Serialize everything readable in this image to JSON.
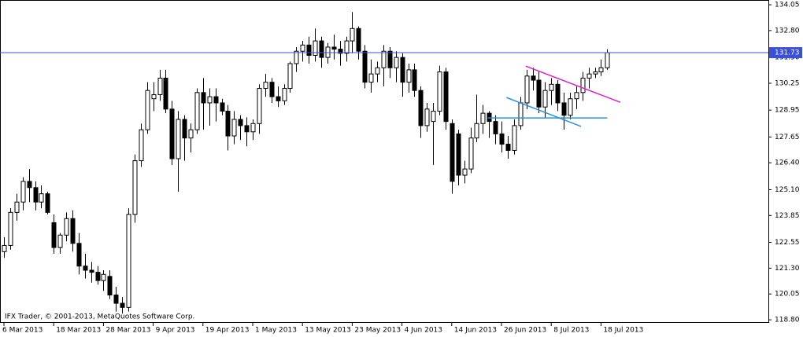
{
  "chart_data": {
    "type": "candlestick",
    "watermark": "IFX Trader, © 2001-2013, MetaQuotes Software Corp.",
    "categories": [
      "6 Mar 2013",
      null,
      null,
      null,
      null,
      null,
      null,
      null,
      "18 Mar 2013",
      null,
      null,
      null,
      null,
      null,
      null,
      null,
      "28 Mar 2013",
      null,
      null,
      null,
      null,
      null,
      null,
      null,
      "9 Apr 2013",
      null,
      null,
      null,
      null,
      null,
      null,
      null,
      "19 Apr 2013",
      null,
      null,
      null,
      null,
      null,
      null,
      null,
      "1 May 2013",
      null,
      null,
      null,
      null,
      null,
      null,
      null,
      "13 May 2013",
      null,
      null,
      null,
      null,
      null,
      null,
      null,
      "23 May 2013",
      null,
      null,
      null,
      null,
      null,
      null,
      null,
      "4 Jun 2013",
      null,
      null,
      null,
      null,
      null,
      null,
      null,
      "14 Jun 2013",
      null,
      null,
      null,
      null,
      null,
      null,
      null,
      "26 Jun 2013",
      null,
      null,
      null,
      null,
      null,
      null,
      null,
      "8 Jul 2013",
      null,
      null,
      null,
      null,
      null,
      null,
      null,
      "18 Jul 2013",
      null
    ],
    "open": [
      122.1,
      122.4,
      124.0,
      124.5,
      125.5,
      125.2,
      124.5,
      124.9,
      123.5,
      122.3,
      122.9,
      123.7,
      122.5,
      121.4,
      121.2,
      121.1,
      120.7,
      120.9,
      120.0,
      119.6,
      119.4,
      123.9,
      126.5,
      128.0,
      129.5,
      129.7,
      130.5,
      129.0,
      126.6,
      128.5,
      127.6,
      128.0,
      129.8,
      129.3,
      129.6,
      129.3,
      128.9,
      127.7,
      128.5,
      128.2,
      127.9,
      128.3,
      130.0,
      130.3,
      129.6,
      129.4,
      130.0,
      131.2,
      131.8,
      132.1,
      131.6,
      132.3,
      131.5,
      132.0,
      131.9,
      131.7,
      132.3,
      132.9,
      131.8,
      130.3,
      130.7,
      131.0,
      131.8,
      131.0,
      131.5,
      130.3,
      130.9,
      129.9,
      128.2,
      128.4,
      128.9,
      130.8,
      128.3,
      127.8,
      125.8,
      126.1,
      127.6,
      128.3,
      128.8,
      128.4,
      127.8,
      127.3,
      127.0,
      128.2,
      129.3,
      130.6,
      130.4,
      129.1,
      129.9,
      130.2,
      129.3,
      128.7,
      129.5,
      129.8,
      130.5,
      130.7,
      130.8,
      131.0
    ],
    "high": [
      122.8,
      124.2,
      124.9,
      125.7,
      126.1,
      125.5,
      125.3,
      125.0,
      123.9,
      123.0,
      124.0,
      124.1,
      123.0,
      122.0,
      121.6,
      121.4,
      121.2,
      121.2,
      120.4,
      119.9,
      124.2,
      126.8,
      128.3,
      130.3,
      130.3,
      130.9,
      130.9,
      129.4,
      128.9,
      128.7,
      128.3,
      130.0,
      130.5,
      130.0,
      130.0,
      129.5,
      129.2,
      128.9,
      128.7,
      128.6,
      128.5,
      130.2,
      130.7,
      130.5,
      130.1,
      130.2,
      131.3,
      132.0,
      132.3,
      132.5,
      132.9,
      132.5,
      132.2,
      132.6,
      132.3,
      132.5,
      133.7,
      133.0,
      132.1,
      131.4,
      131.3,
      132.1,
      132.0,
      131.8,
      131.7,
      131.2,
      131.2,
      130.1,
      129.3,
      129.3,
      131.1,
      131.0,
      128.5,
      128.0,
      126.5,
      128.1,
      129.7,
      129.2,
      128.9,
      128.7,
      128.4,
      127.7,
      128.5,
      129.6,
      130.9,
      131.0,
      130.8,
      130.3,
      130.5,
      130.4,
      129.8,
      129.8,
      130.1,
      130.8,
      131.0,
      131.0,
      131.4,
      131.9
    ],
    "low": [
      121.8,
      122.2,
      123.6,
      124.1,
      124.5,
      124.1,
      124.2,
      123.9,
      122.0,
      122.0,
      122.6,
      122.1,
      121.0,
      120.8,
      120.6,
      120.5,
      120.2,
      119.8,
      119.2,
      119.1,
      119.2,
      123.5,
      126.2,
      127.8,
      128.9,
      129.4,
      128.8,
      126.3,
      125.0,
      126.5,
      126.9,
      127.8,
      128.0,
      128.2,
      128.4,
      128.7,
      127.0,
      127.3,
      127.5,
      127.2,
      127.5,
      127.8,
      129.6,
      129.3,
      129.1,
      129.2,
      129.8,
      130.8,
      131.3,
      131.2,
      131.3,
      131.0,
      131.2,
      131.4,
      131.1,
      131.3,
      131.7,
      131.4,
      130.0,
      129.8,
      130.3,
      130.1,
      130.5,
      130.3,
      129.6,
      129.8,
      129.6,
      127.6,
      127.9,
      126.3,
      128.7,
      128.0,
      124.9,
      125.3,
      125.4,
      125.9,
      127.4,
      127.8,
      127.6,
      127.3,
      126.9,
      126.6,
      126.8,
      128.0,
      129.0,
      129.9,
      128.8,
      128.6,
      129.2,
      128.9,
      128.0,
      128.5,
      129.0,
      129.4,
      130.0,
      130.5,
      130.6,
      130.9
    ],
    "close": [
      122.4,
      124.0,
      124.5,
      125.5,
      125.2,
      124.5,
      124.9,
      124.0,
      122.3,
      122.9,
      123.7,
      122.5,
      121.4,
      121.2,
      121.1,
      120.7,
      121.0,
      120.0,
      119.6,
      119.4,
      123.9,
      126.5,
      128.0,
      129.9,
      129.7,
      130.5,
      129.0,
      126.6,
      128.5,
      127.6,
      128.0,
      129.8,
      129.3,
      129.6,
      129.3,
      128.9,
      127.7,
      128.5,
      128.2,
      127.9,
      128.3,
      130.0,
      130.3,
      129.6,
      129.4,
      130.0,
      131.2,
      131.8,
      132.1,
      131.6,
      132.3,
      131.5,
      132.0,
      131.9,
      131.7,
      132.3,
      132.9,
      131.8,
      130.3,
      130.7,
      131.0,
      131.8,
      131.0,
      131.5,
      130.3,
      130.9,
      129.9,
      128.2,
      129.0,
      128.9,
      130.8,
      128.4,
      125.5,
      125.8,
      126.1,
      127.6,
      128.3,
      128.8,
      128.4,
      127.8,
      127.3,
      127.0,
      128.2,
      129.3,
      130.6,
      130.4,
      129.1,
      129.9,
      130.2,
      129.3,
      128.7,
      129.5,
      129.8,
      130.5,
      130.7,
      130.8,
      131.0,
      131.73
    ],
    "up_color": "#ffffff",
    "down_color": "#000000",
    "wick_color": "#000000",
    "ylim": [
      118.69,
      134.28
    ],
    "yticks": [
      134.05,
      {
        "value": 132.8,
        "label": "132.80"
      },
      {
        "value": 131.5,
        "label": "131.50"
      },
      130.25,
      128.95,
      127.65,
      {
        "value": 126.4,
        "label": "126.40"
      },
      {
        "value": 125.1,
        "label": "125.10"
      },
      123.85,
      122.55,
      {
        "value": 121.3,
        "label": "121.30"
      },
      120.05,
      {
        "value": 118.8,
        "label": "118.80"
      }
    ],
    "price_line": {
      "value": 131.73,
      "color": "#3b50d8"
    },
    "trendlines": [
      {
        "color": "#e020c8",
        "x": [
          83.9,
          99.1
        ],
        "y": [
          131.08,
          129.33
        ]
      },
      {
        "color": "#2a8fe0",
        "x": [
          80.8,
          92.8
        ],
        "y": [
          129.56,
          128.16
        ]
      },
      {
        "color": "#2a8fe0",
        "x": [
          77.8,
          97
        ],
        "y": [
          128.57,
          128.57
        ]
      }
    ]
  }
}
